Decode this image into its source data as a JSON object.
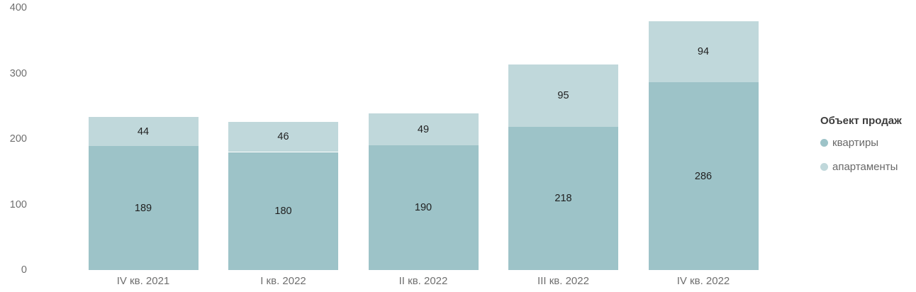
{
  "chart_data": {
    "type": "bar",
    "stacked": true,
    "title": "",
    "legend_title": "Объект продаж",
    "legend_position": "right",
    "grid": false,
    "categories": [
      "IV кв. 2021",
      "I кв. 2022",
      "II кв. 2022",
      "III кв. 2022",
      "IV кв. 2022"
    ],
    "series": [
      {
        "name": "квартиры",
        "color": "#9dc3c8",
        "values": [
          189,
          180,
          190,
          218,
          286
        ]
      },
      {
        "name": "апартаменты",
        "color": "#c0d8db",
        "values": [
          44,
          46,
          49,
          95,
          94
        ]
      }
    ],
    "totals": [
      233,
      226,
      239,
      313,
      380
    ],
    "ylim": [
      0,
      400
    ],
    "yticks": [
      0,
      100,
      200,
      300,
      400
    ],
    "axis_text_color": "#6f6f6f",
    "value_label_color": "#212121"
  }
}
